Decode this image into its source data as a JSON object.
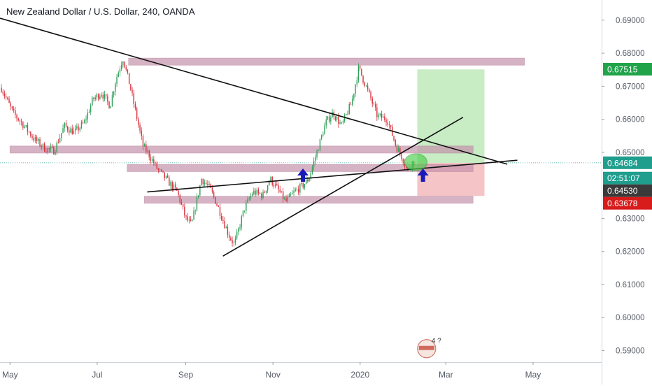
{
  "chart_data": {
    "type": "candlestick",
    "title": "New Zealand Dollar / U.S. Dollar, 240, OANDA",
    "y_axis": {
      "ticks": [
        "0.69000",
        "0.68000",
        "0.67000",
        "0.66000",
        "0.65000",
        "0.63000",
        "0.62000",
        "0.61000",
        "0.60000",
        "0.59000"
      ],
      "tick_values": [
        0.69,
        0.68,
        0.67,
        0.66,
        0.65,
        0.63,
        0.62,
        0.61,
        0.6,
        0.59
      ],
      "range": [
        0.5865,
        0.6961
      ]
    },
    "x_axis": {
      "ticks": [
        "May",
        "Jul",
        "Sep",
        "Nov",
        "2020",
        "Mar",
        "May"
      ],
      "range": [
        "2019-04-24",
        "2020-06-18"
      ]
    },
    "price_trace": [
      [
        "2019-04-25",
        0.6695
      ],
      [
        "2019-05-03",
        0.662
      ],
      [
        "2019-05-10",
        0.6585
      ],
      [
        "2019-05-18",
        0.654
      ],
      [
        "2019-05-26",
        0.651
      ],
      [
        "2019-06-01",
        0.6505
      ],
      [
        "2019-06-08",
        0.658
      ],
      [
        "2019-06-15",
        0.656
      ],
      [
        "2019-06-22",
        0.659
      ],
      [
        "2019-06-28",
        0.666
      ],
      [
        "2019-07-04",
        0.668
      ],
      [
        "2019-07-10",
        0.664
      ],
      [
        "2019-07-14",
        0.672
      ],
      [
        "2019-07-19",
        0.6785
      ],
      [
        "2019-07-24",
        0.67
      ],
      [
        "2019-07-30",
        0.658
      ],
      [
        "2019-08-02",
        0.652
      ],
      [
        "2019-08-06",
        0.6495
      ],
      [
        "2019-08-12",
        0.645
      ],
      [
        "2019-08-18",
        0.642
      ],
      [
        "2019-08-26",
        0.638
      ],
      [
        "2019-09-01",
        0.63
      ],
      [
        "2019-09-05",
        0.628
      ],
      [
        "2019-09-12",
        0.642
      ],
      [
        "2019-09-18",
        0.639
      ],
      [
        "2019-09-24",
        0.633
      ],
      [
        "2019-10-01",
        0.625
      ],
      [
        "2019-10-05",
        0.622
      ],
      [
        "2019-10-12",
        0.633
      ],
      [
        "2019-10-18",
        0.638
      ],
      [
        "2019-10-25",
        0.637
      ],
      [
        "2019-10-30",
        0.642
      ],
      [
        "2019-11-04",
        0.639
      ],
      [
        "2019-11-10",
        0.635
      ],
      [
        "2019-11-16",
        0.638
      ],
      [
        "2019-11-22",
        0.64
      ],
      [
        "2019-11-26",
        0.642
      ],
      [
        "2019-12-01",
        0.649
      ],
      [
        "2019-12-08",
        0.659
      ],
      [
        "2019-12-13",
        0.662
      ],
      [
        "2019-12-19",
        0.658
      ],
      [
        "2019-12-26",
        0.665
      ],
      [
        "2019-12-31",
        0.6755
      ],
      [
        "2020-01-06",
        0.669
      ],
      [
        "2020-01-13",
        0.661
      ],
      [
        "2020-01-20",
        0.66
      ],
      [
        "2020-01-26",
        0.652
      ],
      [
        "2020-01-31",
        0.648
      ],
      [
        "2020-02-03",
        0.644
      ],
      [
        "2020-02-06",
        0.647
      ],
      [
        "2020-02-08",
        0.6468
      ]
    ],
    "horizontal_zones": [
      {
        "from": "2019-07-23",
        "to": "2020-04-25",
        "low": 0.677,
        "high": 0.6785
      },
      {
        "from": "2019-05-01",
        "to": "2020-03-20",
        "low": 0.6499,
        "high": 0.6519
      },
      {
        "from": "2019-07-22",
        "to": "2020-03-20",
        "low": 0.6445,
        "high": 0.6463
      },
      {
        "from": "2019-08-03",
        "to": "2020-03-20",
        "low": 0.6349,
        "high": 0.6367
      }
    ],
    "trend_lines": [
      {
        "from": [
          "2019-04-24",
          0.6906
        ],
        "to": [
          "2020-04-13",
          0.6464
        ]
      },
      {
        "from": [
          "2019-08-05",
          0.638
        ],
        "to": [
          "2020-04-20",
          0.6476
        ]
      },
      {
        "from": [
          "2019-09-27",
          0.6186
        ],
        "to": [
          "2020-03-13",
          0.6606
        ]
      }
    ],
    "trade_targets": {
      "entry": 0.6468,
      "target": 0.6751,
      "stop": 0.6368,
      "from": "2020-02-10",
      "to": "2020-03-28"
    },
    "highlight_ellipse": {
      "date": "2020-02-09",
      "price": 0.647
    },
    "arrows": [
      {
        "date": "2019-11-22",
        "price": 0.643,
        "color": "#1a1ab8"
      },
      {
        "date": "2020-02-14",
        "price": 0.643,
        "color": "#1a1ab8"
      }
    ],
    "price_labels": [
      {
        "text": "0.67515",
        "price": 0.67515,
        "color": "#21a34a"
      },
      {
        "text": "0.64684",
        "price": 0.64684,
        "color": "#1f9e8e"
      },
      {
        "text": "02:51:07",
        "price": 0.6422,
        "color": "#1f9e8e"
      },
      {
        "text": "0.64530",
        "price": 0.6453,
        "color": "#3a3a3a"
      },
      {
        "text": "0.63678",
        "price": 0.63678,
        "color": "#d81b1b"
      }
    ],
    "logo_badge": {
      "date": "2020-02-18",
      "price": 0.591,
      "text": "4 ?"
    },
    "grid": false
  }
}
